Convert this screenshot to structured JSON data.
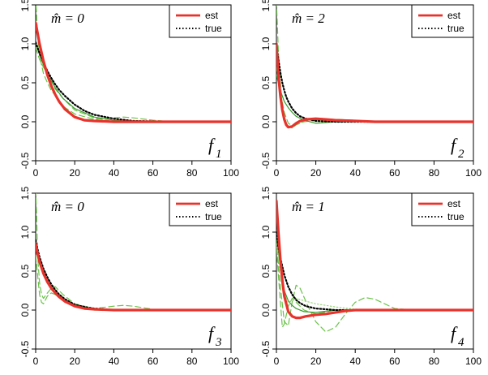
{
  "chart_data": [
    {
      "type": "line",
      "annotation": "m̂ = 0",
      "panel_label": "f",
      "panel_sub": "1",
      "xlim": [
        0,
        100
      ],
      "ylim": [
        -0.5,
        1.5
      ],
      "xticks": [
        0,
        20,
        40,
        60,
        80,
        100
      ],
      "yticks": [
        -0.5,
        0.0,
        0.5,
        1.0,
        1.5
      ],
      "legend": {
        "position": "top-right",
        "entries": [
          {
            "label": "est",
            "color": "#e8322b",
            "style": "solid"
          },
          {
            "label": "true",
            "color": "#000000",
            "style": "dotted"
          }
        ]
      },
      "series": [
        {
          "name": "true",
          "style": "dotted",
          "color": "#000000",
          "x": [
            0,
            2,
            4,
            6,
            8,
            10,
            12,
            15,
            20,
            25,
            30,
            40,
            50,
            70,
            100
          ],
          "y": [
            1.02,
            0.88,
            0.76,
            0.65,
            0.56,
            0.48,
            0.41,
            0.33,
            0.22,
            0.14,
            0.09,
            0.04,
            0.01,
            0.0,
            0.0
          ]
        },
        {
          "name": "est",
          "style": "solid",
          "color": "#e8322b",
          "x": [
            0,
            2,
            4,
            6,
            8,
            10,
            12,
            15,
            20,
            25,
            30,
            40,
            50,
            70,
            100
          ],
          "y": [
            1.27,
            1.0,
            0.78,
            0.6,
            0.46,
            0.35,
            0.26,
            0.16,
            0.06,
            0.02,
            0.01,
            0.0,
            0.0,
            0.0,
            0.0
          ]
        },
        {
          "style": "dashed",
          "color": "#6bc24a",
          "x": [
            0,
            1,
            2,
            4,
            6,
            8,
            10,
            14,
            20,
            30,
            40,
            45,
            50,
            60,
            70,
            100
          ],
          "y": [
            1.6,
            1.1,
            0.85,
            0.62,
            0.5,
            0.4,
            0.34,
            0.2,
            0.1,
            0.03,
            0.05,
            0.06,
            0.05,
            0.02,
            0.0,
            0.0
          ]
        },
        {
          "style": "dashed",
          "color": "#6bc24a",
          "x": [
            0,
            2,
            4,
            6,
            8,
            10,
            14,
            20,
            30,
            40,
            50,
            70,
            100
          ],
          "y": [
            0.95,
            0.8,
            0.7,
            0.62,
            0.55,
            0.42,
            0.3,
            0.15,
            0.05,
            0.0,
            0.0,
            0.0,
            0.0
          ]
        },
        {
          "style": "solid",
          "color": "#3a9a2e",
          "x": [
            0,
            2,
            4,
            6,
            8,
            10,
            14,
            20,
            30,
            40,
            50,
            70,
            100
          ],
          "y": [
            1.0,
            0.86,
            0.73,
            0.62,
            0.52,
            0.44,
            0.3,
            0.17,
            0.06,
            0.02,
            0.0,
            0.0,
            0.0
          ]
        }
      ]
    },
    {
      "type": "line",
      "annotation": "m̂ = 2",
      "panel_label": "f",
      "panel_sub": "2",
      "xlim": [
        0,
        100
      ],
      "ylim": [
        -0.5,
        1.5
      ],
      "xticks": [
        0,
        20,
        40,
        60,
        80,
        100
      ],
      "yticks": [
        -0.5,
        0.0,
        0.5,
        1.0,
        1.5
      ],
      "legend": {
        "position": "top-right",
        "entries": [
          {
            "label": "est",
            "color": "#e8322b",
            "style": "solid"
          },
          {
            "label": "true",
            "color": "#000000",
            "style": "dotted"
          }
        ]
      },
      "series": [
        {
          "name": "true",
          "style": "dotted",
          "color": "#000000",
          "x": [
            0,
            1,
            2,
            3,
            4,
            5,
            6,
            8,
            10,
            12,
            15,
            20,
            30,
            50,
            100
          ],
          "y": [
            1.0,
            0.8,
            0.63,
            0.5,
            0.4,
            0.32,
            0.26,
            0.17,
            0.11,
            0.07,
            0.04,
            0.01,
            0.0,
            0.0,
            0.0
          ]
        },
        {
          "name": "est",
          "style": "solid",
          "color": "#e8322b",
          "x": [
            0,
            1,
            2,
            3,
            4,
            5,
            6,
            8,
            10,
            12,
            15,
            20,
            25,
            30,
            40,
            50,
            60,
            100
          ],
          "y": [
            1.0,
            0.6,
            0.33,
            0.15,
            0.03,
            -0.04,
            -0.07,
            -0.06,
            -0.02,
            0.01,
            0.03,
            0.04,
            0.03,
            0.02,
            0.01,
            0.0,
            0.0,
            0.0
          ]
        },
        {
          "style": "dashed",
          "color": "#6bc24a",
          "x": [
            0,
            1,
            2,
            3,
            4,
            6,
            8,
            10,
            14,
            20,
            30,
            40,
            50,
            60,
            100
          ],
          "y": [
            1.55,
            0.9,
            0.5,
            0.2,
            0.05,
            -0.06,
            -0.08,
            -0.04,
            0.0,
            0.02,
            0.03,
            0.02,
            0.0,
            0.0,
            0.0
          ]
        },
        {
          "style": "solid",
          "color": "#3a9a2e",
          "x": [
            0,
            2,
            4,
            6,
            8,
            10,
            14,
            20,
            30,
            40,
            100
          ],
          "y": [
            0.6,
            0.4,
            0.26,
            0.18,
            0.12,
            0.07,
            0.02,
            -0.02,
            0.0,
            0.0,
            0.0
          ]
        },
        {
          "style": "dashed",
          "color": "#6bc24a",
          "x": [
            0,
            2,
            4,
            6,
            8,
            10,
            15,
            20,
            30,
            40,
            60,
            100
          ],
          "y": [
            0.7,
            0.38,
            0.12,
            -0.02,
            -0.05,
            -0.03,
            0.02,
            0.04,
            0.03,
            0.01,
            0.0,
            0.0
          ]
        }
      ]
    },
    {
      "type": "line",
      "annotation": "m̂ = 0",
      "panel_label": "f",
      "panel_sub": "3",
      "xlim": [
        0,
        100
      ],
      "ylim": [
        -0.5,
        1.5
      ],
      "xticks": [
        0,
        20,
        40,
        60,
        80,
        100
      ],
      "yticks": [
        -0.5,
        0.0,
        0.5,
        1.0,
        1.5
      ],
      "legend": {
        "position": "top-right",
        "entries": [
          {
            "label": "est",
            "color": "#e8322b",
            "style": "solid"
          },
          {
            "label": "true",
            "color": "#000000",
            "style": "dotted"
          }
        ]
      },
      "series": [
        {
          "name": "true",
          "style": "dotted",
          "color": "#000000",
          "x": [
            0,
            1,
            2,
            4,
            6,
            8,
            10,
            12,
            15,
            20,
            25,
            30,
            40,
            60,
            100
          ],
          "y": [
            0.9,
            0.78,
            0.68,
            0.53,
            0.42,
            0.33,
            0.26,
            0.2,
            0.14,
            0.07,
            0.04,
            0.02,
            0.0,
            0.0,
            0.0
          ]
        },
        {
          "name": "est",
          "style": "solid",
          "color": "#e8322b",
          "x": [
            0,
            1,
            2,
            4,
            6,
            8,
            10,
            12,
            15,
            20,
            25,
            30,
            40,
            60,
            100
          ],
          "y": [
            0.85,
            0.72,
            0.62,
            0.47,
            0.36,
            0.28,
            0.22,
            0.17,
            0.11,
            0.05,
            0.02,
            0.01,
            0.0,
            0.0,
            0.0
          ]
        },
        {
          "style": "dashed",
          "color": "#6bc24a",
          "x": [
            0,
            0.5,
            1,
            2,
            3,
            4,
            6,
            8,
            10,
            14,
            20,
            30,
            40,
            45,
            50,
            60,
            100
          ],
          "y": [
            1.55,
            1.2,
            0.7,
            0.35,
            0.2,
            0.15,
            0.22,
            0.28,
            0.3,
            0.2,
            0.08,
            0.02,
            0.05,
            0.06,
            0.05,
            0.01,
            0.0
          ]
        },
        {
          "style": "dashed",
          "color": "#6bc24a",
          "x": [
            0,
            1,
            2,
            3,
            4,
            6,
            8,
            10,
            14,
            20,
            30,
            40,
            100
          ],
          "y": [
            0.7,
            0.45,
            0.2,
            0.1,
            0.08,
            0.18,
            0.22,
            0.2,
            0.12,
            0.05,
            0.0,
            0.0,
            0.0
          ]
        },
        {
          "style": "solid",
          "color": "#3a9a2e",
          "x": [
            0,
            2,
            4,
            6,
            8,
            10,
            14,
            20,
            30,
            40,
            100
          ],
          "y": [
            0.85,
            0.62,
            0.46,
            0.36,
            0.28,
            0.22,
            0.13,
            0.06,
            0.01,
            0.0,
            0.0
          ]
        }
      ]
    },
    {
      "type": "line",
      "annotation": "m̂ = 1",
      "panel_label": "f",
      "panel_sub": "4",
      "xlim": [
        0,
        100
      ],
      "ylim": [
        -0.5,
        1.5
      ],
      "xticks": [
        0,
        20,
        40,
        60,
        80,
        100
      ],
      "yticks": [
        -0.5,
        0.0,
        0.5,
        1.0,
        1.5
      ],
      "legend": {
        "position": "top-right",
        "entries": [
          {
            "label": "est",
            "color": "#e8322b",
            "style": "solid"
          },
          {
            "label": "true",
            "color": "#000000",
            "style": "dotted"
          }
        ]
      },
      "series": [
        {
          "name": "true",
          "style": "dotted",
          "color": "#000000",
          "x": [
            0,
            1,
            2,
            4,
            6,
            8,
            10,
            12,
            15,
            20,
            25,
            30,
            40,
            60,
            100
          ],
          "y": [
            1.0,
            0.82,
            0.67,
            0.45,
            0.3,
            0.2,
            0.13,
            0.09,
            0.05,
            0.02,
            0.01,
            0.0,
            0.0,
            0.0,
            0.0
          ]
        },
        {
          "name": "est",
          "style": "solid",
          "color": "#e8322b",
          "x": [
            0,
            1,
            2,
            3,
            4,
            6,
            8,
            10,
            12,
            15,
            20,
            25,
            30,
            35,
            40,
            50,
            60,
            100
          ],
          "y": [
            1.4,
            1.0,
            0.65,
            0.38,
            0.18,
            -0.02,
            -0.08,
            -0.1,
            -0.1,
            -0.08,
            -0.06,
            -0.05,
            -0.03,
            -0.01,
            0.0,
            0.0,
            0.0,
            0.0
          ]
        },
        {
          "style": "dashed",
          "color": "#6bc24a",
          "x": [
            0,
            2,
            4,
            6,
            8,
            10,
            12,
            16,
            20,
            25,
            30,
            35,
            40,
            45,
            50,
            55,
            60,
            70,
            80,
            100
          ],
          "y": [
            0.9,
            0.3,
            -0.15,
            -0.2,
            0.1,
            0.32,
            0.28,
            0.05,
            -0.15,
            -0.28,
            -0.22,
            -0.05,
            0.1,
            0.16,
            0.14,
            0.08,
            0.02,
            0.0,
            0.0,
            0.0
          ]
        },
        {
          "style": "dashed",
          "color": "#6bc24a",
          "x": [
            0,
            2,
            3,
            4,
            6,
            8,
            10,
            14,
            20,
            30,
            40,
            100
          ],
          "y": [
            0.8,
            0.1,
            -0.22,
            -0.18,
            0.05,
            0.15,
            0.1,
            0.0,
            -0.05,
            0.0,
            0.0,
            0.0
          ]
        },
        {
          "style": "solid",
          "color": "#3a9a2e",
          "x": [
            0,
            2,
            4,
            6,
            8,
            10,
            14,
            20,
            30,
            40,
            100
          ],
          "y": [
            0.95,
            0.55,
            0.25,
            0.12,
            0.06,
            0.02,
            -0.02,
            -0.03,
            0.0,
            0.0,
            0.0
          ]
        },
        {
          "style": "dotted",
          "color": "#9ad67c",
          "x": [
            0,
            2,
            4,
            6,
            8,
            10,
            14,
            20,
            25,
            30,
            40,
            100
          ],
          "y": [
            0.85,
            0.5,
            0.2,
            0.1,
            0.12,
            0.15,
            0.12,
            0.08,
            0.06,
            0.04,
            0.01,
            0.0
          ]
        }
      ]
    }
  ]
}
